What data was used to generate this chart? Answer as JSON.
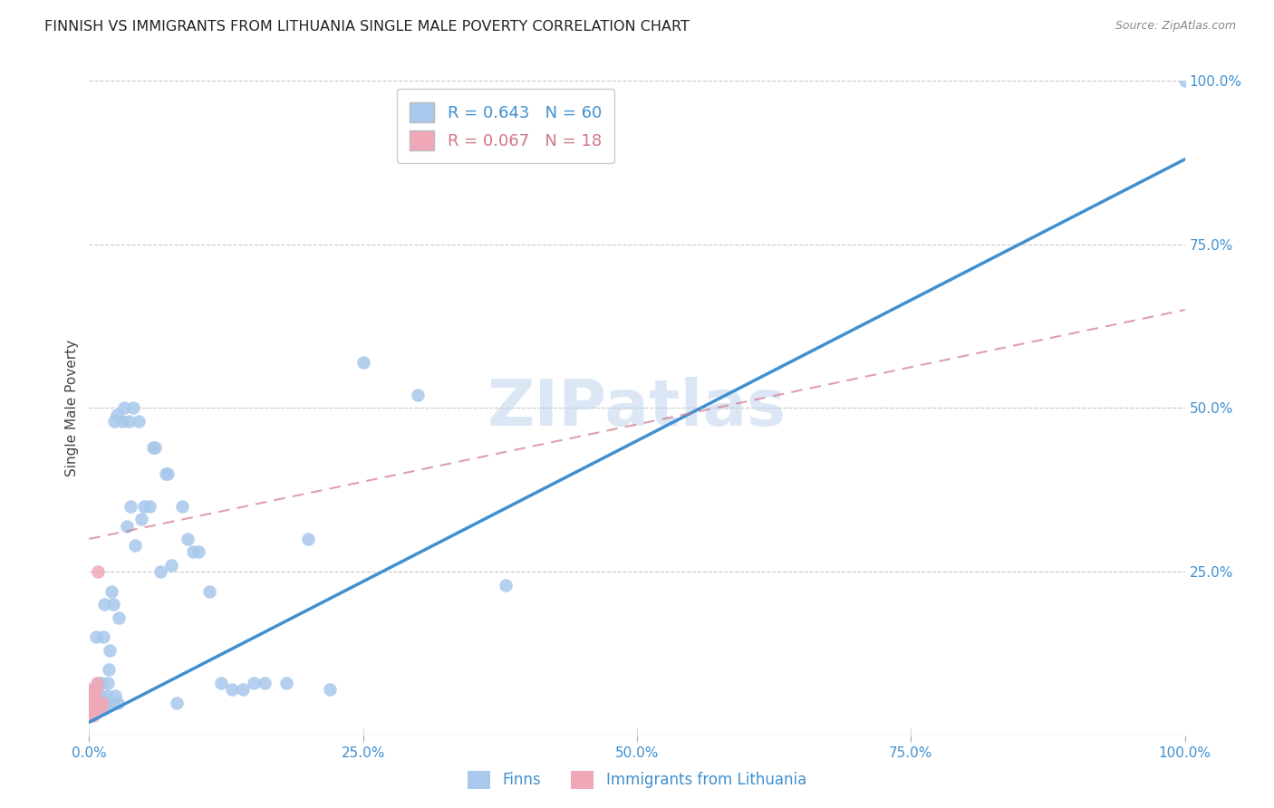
{
  "title": "FINNISH VS IMMIGRANTS FROM LITHUANIA SINGLE MALE POVERTY CORRELATION CHART",
  "source": "Source: ZipAtlas.com",
  "ylabel": "Single Male Poverty",
  "watermark": "ZIPatlas",
  "background_color": "#ffffff",
  "plot_bg_color": "#ffffff",
  "grid_color": "#c8c8c8",
  "finns_R": 0.643,
  "finns_N": 60,
  "lithuania_R": 0.067,
  "lithuania_N": 18,
  "finns_color": "#a8c8ec",
  "lithuania_color": "#f0a8b8",
  "finns_line_color": "#4090d0",
  "lithuania_line_color": "#d07888",
  "finns_x": [
    0.001,
    0.003,
    0.005,
    0.006,
    0.007,
    0.008,
    0.009,
    0.01,
    0.011,
    0.012,
    0.013,
    0.014,
    0.015,
    0.016,
    0.017,
    0.018,
    0.019,
    0.02,
    0.021,
    0.022,
    0.023,
    0.024,
    0.025,
    0.026,
    0.027,
    0.03,
    0.032,
    0.034,
    0.036,
    0.038,
    0.04,
    0.042,
    0.045,
    0.048,
    0.05,
    0.055,
    0.058,
    0.06,
    0.065,
    0.07,
    0.072,
    0.075,
    0.08,
    0.085,
    0.09,
    0.095,
    0.1,
    0.11,
    0.12,
    0.13,
    0.14,
    0.15,
    0.16,
    0.18,
    0.2,
    0.22,
    0.25,
    0.3,
    0.38,
    1.0
  ],
  "finns_y": [
    0.05,
    0.06,
    0.07,
    0.15,
    0.04,
    0.08,
    0.05,
    0.06,
    0.08,
    0.04,
    0.15,
    0.2,
    0.05,
    0.06,
    0.08,
    0.1,
    0.13,
    0.22,
    0.05,
    0.2,
    0.48,
    0.06,
    0.49,
    0.05,
    0.18,
    0.48,
    0.5,
    0.32,
    0.48,
    0.35,
    0.5,
    0.29,
    0.48,
    0.33,
    0.35,
    0.35,
    0.44,
    0.44,
    0.25,
    0.4,
    0.4,
    0.26,
    0.05,
    0.35,
    0.3,
    0.28,
    0.28,
    0.22,
    0.08,
    0.07,
    0.07,
    0.08,
    0.08,
    0.08,
    0.3,
    0.07,
    0.57,
    0.52,
    0.23,
    1.0
  ],
  "lithuania_x": [
    0.0,
    0.0,
    0.0,
    0.0,
    0.0,
    0.001,
    0.001,
    0.002,
    0.003,
    0.004,
    0.004,
    0.005,
    0.006,
    0.007,
    0.008,
    0.009,
    0.01,
    0.012
  ],
  "lithuania_y": [
    0.03,
    0.04,
    0.05,
    0.06,
    0.07,
    0.04,
    0.05,
    0.04,
    0.05,
    0.03,
    0.06,
    0.07,
    0.07,
    0.08,
    0.25,
    0.05,
    0.04,
    0.05
  ],
  "xmin": 0.0,
  "xmax": 1.0,
  "ymin": 0.0,
  "ymax": 1.0,
  "xtick_vals": [
    0.0,
    0.25,
    0.5,
    0.75,
    1.0
  ],
  "xtick_labels": [
    "0.0%",
    "25.0%",
    "50.0%",
    "75.0%",
    "100.0%"
  ],
  "ytick_vals": [
    0.25,
    0.5,
    0.75,
    1.0
  ],
  "ytick_labels": [
    "25.0%",
    "50.0%",
    "75.0%",
    "100.0%"
  ],
  "finn_line_x0": 0.0,
  "finn_line_y0": 0.02,
  "finn_line_x1": 1.0,
  "finn_line_y1": 0.88,
  "lith_line_x0": 0.0,
  "lith_line_y0": 0.3,
  "lith_line_x1": 1.0,
  "lith_line_y1": 0.65
}
